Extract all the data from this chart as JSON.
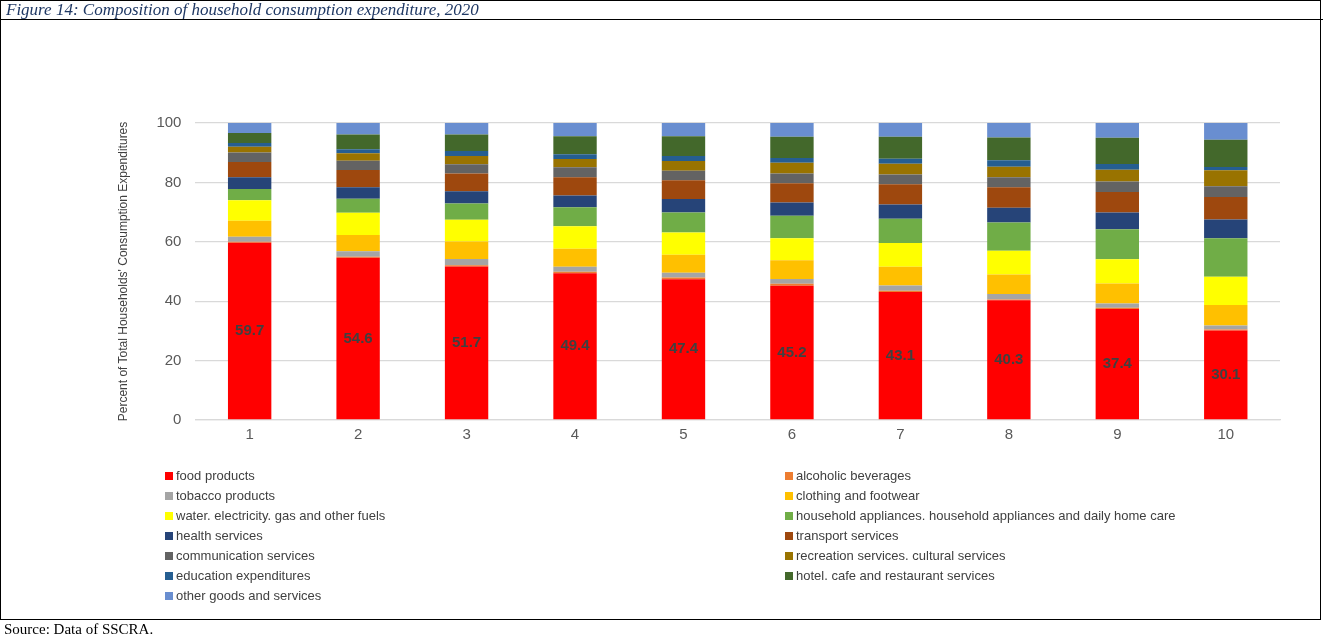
{
  "chart_data": {
    "type": "bar",
    "stacked": true,
    "title": "Figure 14: Composition of household consumption expenditure, 2020",
    "ylabel": "Percent of Total Households' Consumption Expenditures",
    "categories": [
      "1",
      "2",
      "3",
      "4",
      "5",
      "6",
      "7",
      "8",
      "9",
      "10"
    ],
    "ylim": [
      0,
      100
    ],
    "yticks": [
      0,
      20,
      40,
      60,
      80,
      100
    ],
    "grid": "y",
    "legend": "bottom",
    "annotations": [
      "Source: Data of SSCRA."
    ],
    "series": [
      {
        "name": "food products",
        "color": "#ff0000",
        "values": [
          59.7,
          54.6,
          51.7,
          49.4,
          47.4,
          45.2,
          43.1,
          40.3,
          37.4,
          30.1
        ],
        "value_labels": [
          "59.7",
          "54.6",
          "51.7",
          "49.4",
          "47.4",
          "45.2",
          "43.1",
          "40.3",
          "37.4",
          "30.1"
        ]
      },
      {
        "name": "alcoholic beverages",
        "color": "#ed7d31",
        "values": [
          0.3,
          0.4,
          0.4,
          0.5,
          0.6,
          0.7,
          0.4,
          0.3,
          0.4,
          0.4
        ]
      },
      {
        "name": "tobacco products",
        "color": "#a5a5a5",
        "values": [
          1.7,
          1.8,
          2.1,
          1.7,
          1.6,
          1.6,
          1.8,
          1.8,
          1.4,
          1.3
        ]
      },
      {
        "name": "clothing and footwear",
        "color": "#ffc000",
        "values": [
          5.4,
          5.5,
          5.9,
          6.1,
          6.0,
          6.3,
          6.3,
          6.6,
          6.8,
          6.9
        ]
      },
      {
        "name": "water. electricity. gas and other fuels",
        "color": "#ffff00",
        "values": [
          6.9,
          7.5,
          7.3,
          7.5,
          7.5,
          7.4,
          8.0,
          8.0,
          8.1,
          9.5
        ]
      },
      {
        "name": "household appliances. household appliances and daily home care",
        "color": "#70ad47",
        "values": [
          3.8,
          4.7,
          5.5,
          6.4,
          6.8,
          7.6,
          8.2,
          9.5,
          10.1,
          13.0
        ]
      },
      {
        "name": "health services",
        "color": "#264478",
        "values": [
          3.9,
          3.9,
          4.1,
          4.0,
          4.5,
          4.4,
          4.8,
          5.0,
          5.7,
          6.3
        ]
      },
      {
        "name": "transport services",
        "color": "#9e480e",
        "values": [
          5.2,
          5.8,
          6.0,
          6.1,
          6.3,
          6.5,
          6.8,
          6.9,
          6.9,
          7.6
        ]
      },
      {
        "name": "communication services",
        "color": "#636363",
        "values": [
          3.2,
          3.1,
          3.1,
          3.4,
          3.2,
          3.3,
          3.3,
          3.3,
          3.5,
          3.6
        ]
      },
      {
        "name": "recreation services. cultural services",
        "color": "#997300",
        "values": [
          1.9,
          2.5,
          2.8,
          2.8,
          3.3,
          3.6,
          3.6,
          3.6,
          4.0,
          5.4
        ]
      },
      {
        "name": "education expenditures",
        "color": "#255e91",
        "values": [
          1.3,
          1.4,
          1.7,
          1.6,
          1.7,
          1.6,
          1.7,
          2.2,
          1.9,
          1.1
        ]
      },
      {
        "name": "hotel. cafe and restaurant services",
        "color": "#43682b",
        "values": [
          3.3,
          4.9,
          5.5,
          6.0,
          6.6,
          7.2,
          7.4,
          7.6,
          8.8,
          9.2
        ]
      },
      {
        "name": "other goods and services",
        "color": "#698ed0",
        "values": [
          3.4,
          3.9,
          3.9,
          4.5,
          4.5,
          4.6,
          4.6,
          4.9,
          5.0,
          5.6
        ]
      }
    ]
  }
}
